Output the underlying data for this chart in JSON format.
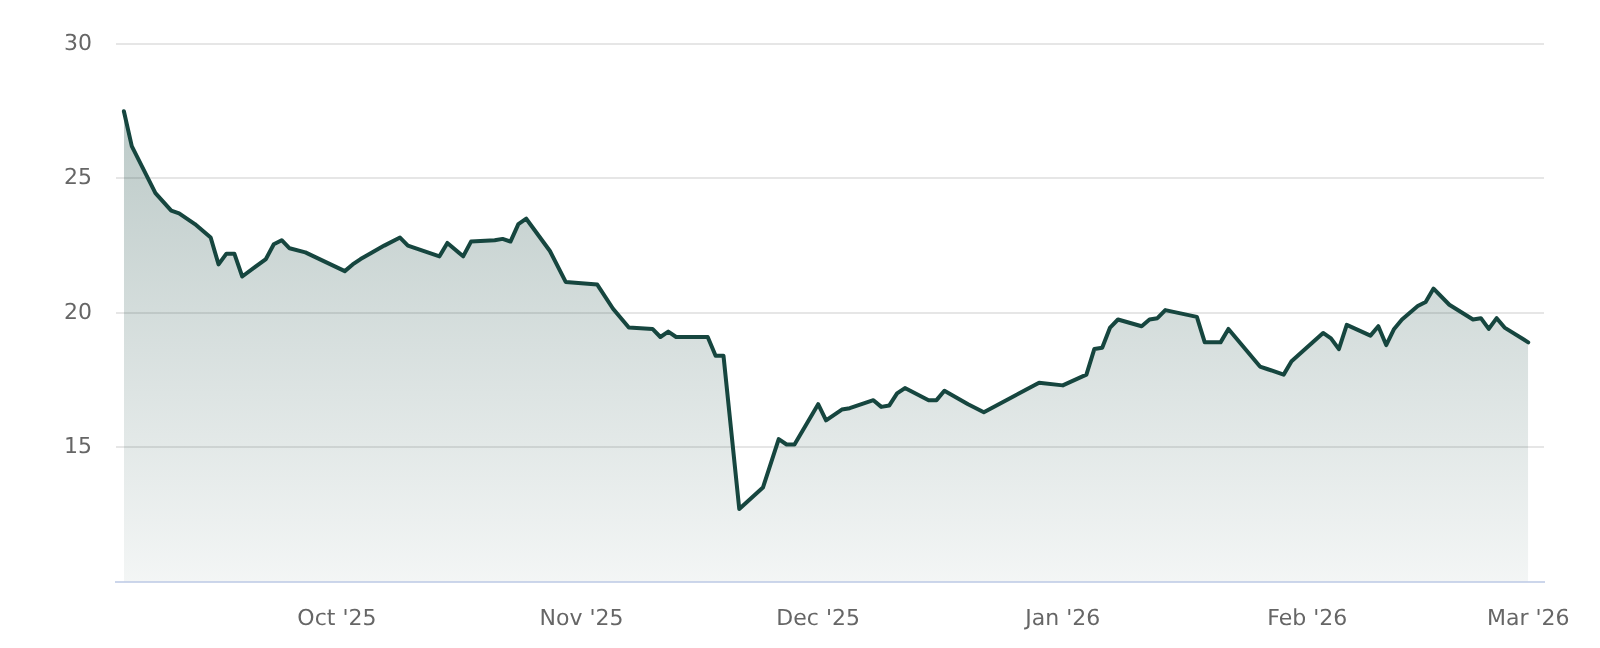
{
  "chart_data": {
    "type": "area",
    "grid": "y",
    "legend": false,
    "marker": "none",
    "line_style": "solid",
    "xlim": [
      "2025-09-03",
      "2026-03-03"
    ],
    "xticks": [
      {
        "value": "2025-10-01",
        "label": "Oct '25"
      },
      {
        "value": "2025-11-01",
        "label": "Nov '25"
      },
      {
        "value": "2025-12-01",
        "label": "Dec '25"
      },
      {
        "value": "2026-01-01",
        "label": "Jan '26"
      },
      {
        "value": "2026-02-01",
        "label": "Feb '26"
      },
      {
        "value": "2026-03-01",
        "label": "Mar '26"
      }
    ],
    "ylim": [
      10,
      30
    ],
    "yticks": [
      15,
      20,
      25,
      30
    ],
    "series": [
      {
        "color": "#16463f",
        "x": [
          "2025-09-04",
          "2025-09-05",
          "2025-09-08",
          "2025-09-10",
          "2025-09-11",
          "2025-09-13",
          "2025-09-15",
          "2025-09-16",
          "2025-09-17",
          "2025-09-18",
          "2025-09-19",
          "2025-09-22",
          "2025-09-23",
          "2025-09-24",
          "2025-09-25",
          "2025-09-27",
          "2025-10-02",
          "2025-10-03",
          "2025-10-04",
          "2025-10-07",
          "2025-10-09",
          "2025-10-10",
          "2025-10-14",
          "2025-10-15",
          "2025-10-17",
          "2025-10-18",
          "2025-10-21",
          "2025-10-22",
          "2025-10-23",
          "2025-10-24",
          "2025-10-25",
          "2025-10-28",
          "2025-10-30",
          "2025-11-03",
          "2025-11-05",
          "2025-11-07",
          "2025-11-10",
          "2025-11-11",
          "2025-11-12",
          "2025-11-13",
          "2025-11-17",
          "2025-11-18",
          "2025-11-19",
          "2025-11-21",
          "2025-11-24",
          "2025-11-26",
          "2025-11-27",
          "2025-11-28",
          "2025-12-01",
          "2025-12-02",
          "2025-12-04",
          "2025-12-05",
          "2025-12-08",
          "2025-12-09",
          "2025-12-10",
          "2025-12-11",
          "2025-12-12",
          "2025-12-15",
          "2025-12-16",
          "2025-12-17",
          "2025-12-20",
          "2025-12-22",
          "2025-12-29",
          "2026-01-01",
          "2026-01-04",
          "2026-01-05",
          "2026-01-06",
          "2026-01-07",
          "2026-01-08",
          "2026-01-11",
          "2026-01-12",
          "2026-01-13",
          "2026-01-14",
          "2026-01-18",
          "2026-01-19",
          "2026-01-21",
          "2026-01-22",
          "2026-01-26",
          "2026-01-27",
          "2026-01-29",
          "2026-01-30",
          "2026-02-03",
          "2026-02-04",
          "2026-02-05",
          "2026-02-06",
          "2026-02-09",
          "2026-02-10",
          "2026-02-11",
          "2026-02-12",
          "2026-02-13",
          "2026-02-15",
          "2026-02-16",
          "2026-02-17",
          "2026-02-19",
          "2026-02-22",
          "2026-02-23",
          "2026-02-24",
          "2026-02-25",
          "2026-02-26",
          "2026-03-01"
        ],
        "values": [
          27.5,
          26.2,
          24.45,
          23.8,
          23.7,
          23.3,
          22.8,
          21.8,
          22.2,
          22.2,
          21.35,
          22.0,
          22.55,
          22.7,
          22.4,
          22.25,
          21.55,
          21.8,
          22.0,
          22.5,
          22.8,
          22.5,
          22.1,
          22.6,
          22.1,
          22.65,
          22.7,
          22.75,
          22.65,
          23.3,
          23.5,
          22.3,
          21.15,
          21.05,
          20.15,
          19.45,
          19.4,
          19.1,
          19.3,
          19.1,
          19.1,
          18.4,
          18.4,
          12.7,
          13.5,
          15.3,
          15.1,
          15.1,
          16.6,
          16.0,
          16.4,
          16.45,
          16.75,
          16.5,
          16.55,
          17.0,
          17.2,
          16.75,
          16.75,
          17.1,
          16.6,
          16.3,
          17.4,
          17.3,
          17.7,
          18.65,
          18.7,
          19.45,
          19.75,
          19.5,
          19.75,
          19.8,
          20.1,
          19.85,
          18.9,
          18.9,
          19.4,
          18.0,
          17.9,
          17.7,
          18.2,
          19.25,
          19.05,
          18.65,
          19.55,
          19.15,
          19.5,
          18.8,
          19.4,
          19.75,
          20.25,
          20.4,
          20.9,
          20.3,
          19.75,
          19.8,
          19.4,
          19.8,
          19.45,
          18.9
        ]
      }
    ]
  }
}
